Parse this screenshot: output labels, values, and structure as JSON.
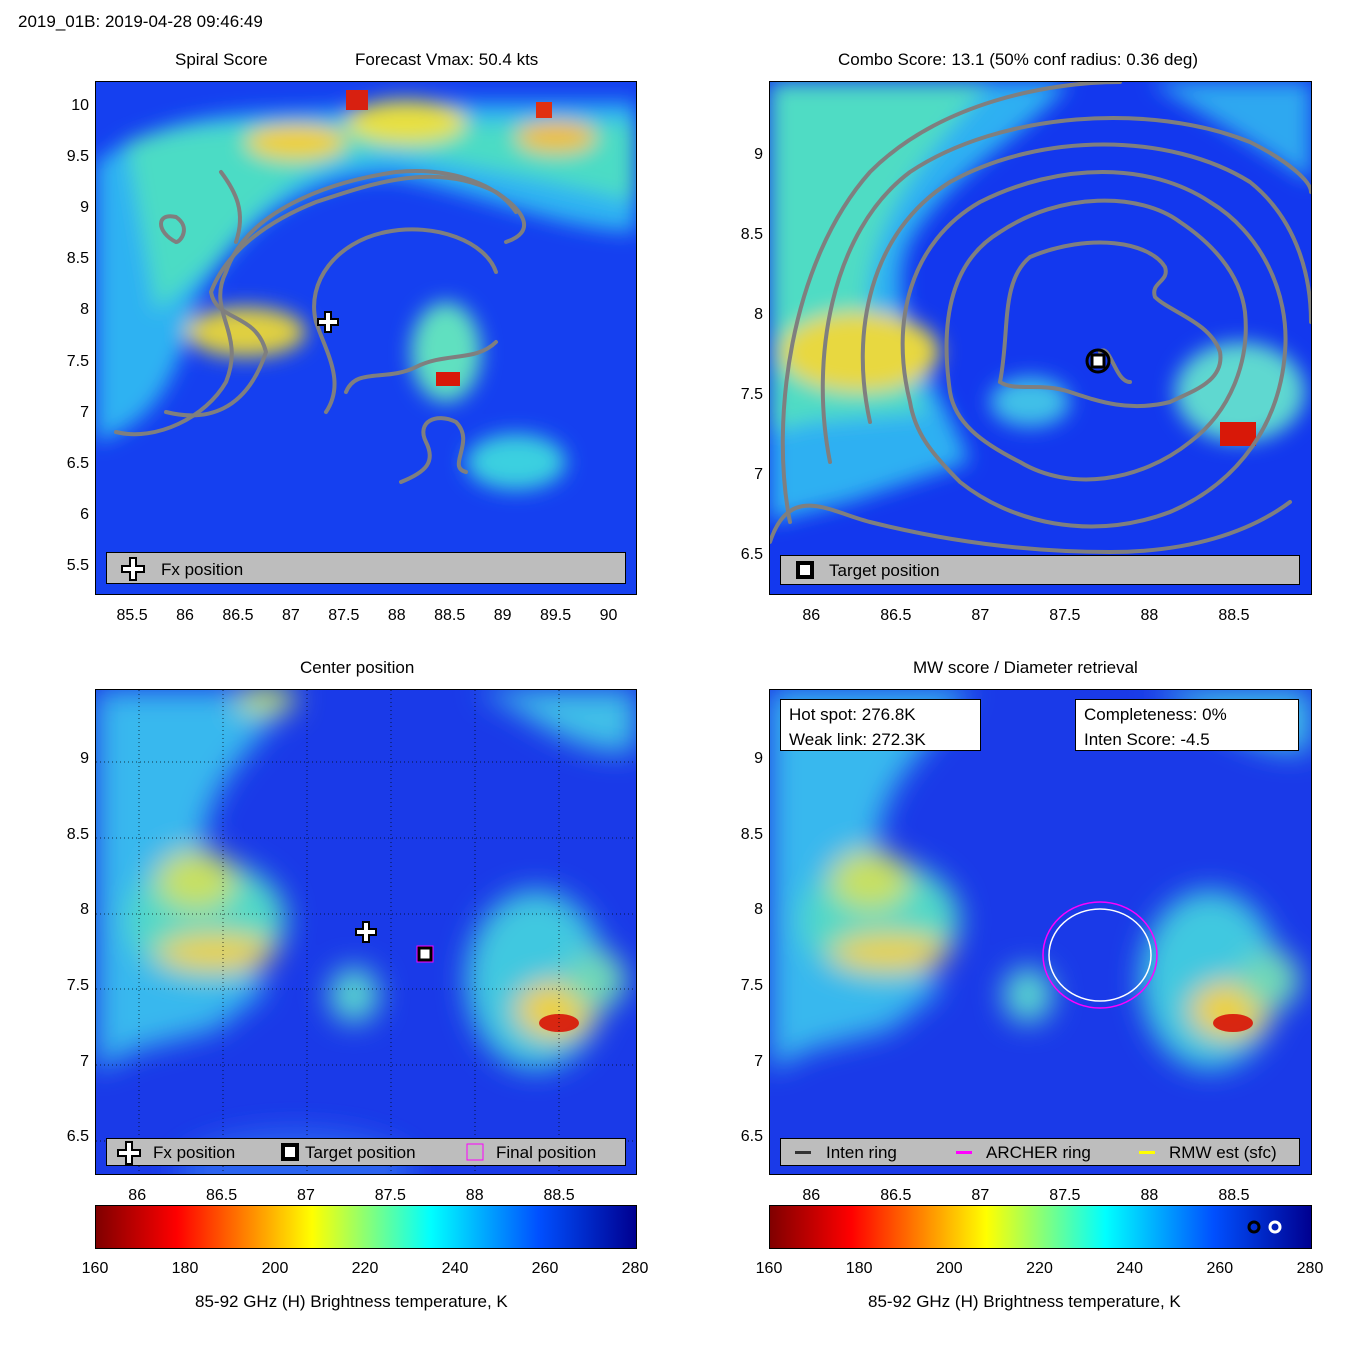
{
  "header": {
    "title": "2019_01B: 2019-04-28 09:46:49"
  },
  "colors": {
    "contour": "#7f7f7f",
    "legend_bg": "#bdbdbd",
    "archer_ring": "#ff00ff",
    "inten_ring": "#333333",
    "rmw_ring": "#ffff00"
  },
  "panels": {
    "spiral": {
      "title": "Spiral Score",
      "title2": "Forecast Vmax: 50.4 kts",
      "legend": [
        "Fx position"
      ]
    },
    "combo": {
      "title": "Combo Score: 13.1  (50% conf radius: 0.36 deg)",
      "legend": [
        "Target position"
      ]
    },
    "center": {
      "title": "Center position",
      "legend": [
        "Fx position",
        "Target position",
        "Final position"
      ]
    },
    "mw": {
      "title": "MW score / Diameter retrieval",
      "hot_spot": "Hot spot: 276.8K",
      "weak_link": "Weak link: 272.3K",
      "completeness": "Completeness: 0%",
      "inten_score": "Inten Score: -4.5",
      "legend": [
        "Inten ring",
        "ARCHER ring",
        "RMW est (sfc)"
      ]
    }
  },
  "colorbar": {
    "label": "85-92 GHz (H) Brightness temperature, K",
    "ticks": [
      "160",
      "180",
      "200",
      "220",
      "240",
      "260",
      "280"
    ]
  },
  "chart_data": [
    {
      "type": "heatmap",
      "title": "Spiral Score",
      "subtitle": "Forecast Vmax: 50.4 kts",
      "xlim": [
        85.15,
        90.25
      ],
      "ylim": [
        5.25,
        10.25
      ],
      "x_ticks": [
        85.5,
        86,
        86.5,
        87,
        87.5,
        88,
        88.5,
        89,
        89.5,
        90
      ],
      "y_ticks": [
        5.5,
        6,
        6.5,
        7,
        7.5,
        8,
        8.5,
        9,
        9.5,
        10
      ],
      "markers": [
        {
          "name": "Fx position",
          "x": 87.35,
          "y": 7.88
        }
      ]
    },
    {
      "type": "heatmap",
      "title": "Combo Score: 13.1  (50% conf radius: 0.36 deg)",
      "xlim": [
        85.75,
        88.95
      ],
      "ylim": [
        6.27,
        9.47
      ],
      "x_ticks": [
        86,
        86.5,
        87,
        87.5,
        88,
        88.5
      ],
      "y_ticks": [
        6.5,
        7,
        7.5,
        8,
        8.5,
        9
      ],
      "markers": [
        {
          "name": "Target position",
          "x": 87.68,
          "y": 7.73
        }
      ]
    },
    {
      "type": "heatmap",
      "title": "Center position",
      "xlim": [
        85.75,
        88.95
      ],
      "ylim": [
        6.27,
        9.47
      ],
      "x_ticks": [
        86,
        86.5,
        87,
        87.5,
        88,
        88.5
      ],
      "y_ticks": [
        6.5,
        7,
        7.5,
        8,
        8.5,
        9
      ],
      "grid": true,
      "markers": [
        {
          "name": "Fx position",
          "x": 87.35,
          "y": 7.88
        },
        {
          "name": "Target position",
          "x": 87.68,
          "y": 7.73
        },
        {
          "name": "Final position",
          "x": 87.68,
          "y": 7.73
        }
      ]
    },
    {
      "type": "heatmap",
      "title": "MW score / Diameter retrieval",
      "xlim": [
        85.75,
        88.95
      ],
      "ylim": [
        6.27,
        9.47
      ],
      "x_ticks": [
        86,
        86.5,
        87,
        87.5,
        88,
        88.5
      ],
      "y_ticks": [
        6.5,
        7,
        7.5,
        8,
        8.5,
        9
      ],
      "rings": [
        {
          "name": "ARCHER ring",
          "x": 87.68,
          "y": 7.73,
          "radius_deg": 0.34
        },
        {
          "name": "Inten ring",
          "x": 87.68,
          "y": 7.73,
          "radius_deg": 0.3
        }
      ]
    }
  ]
}
